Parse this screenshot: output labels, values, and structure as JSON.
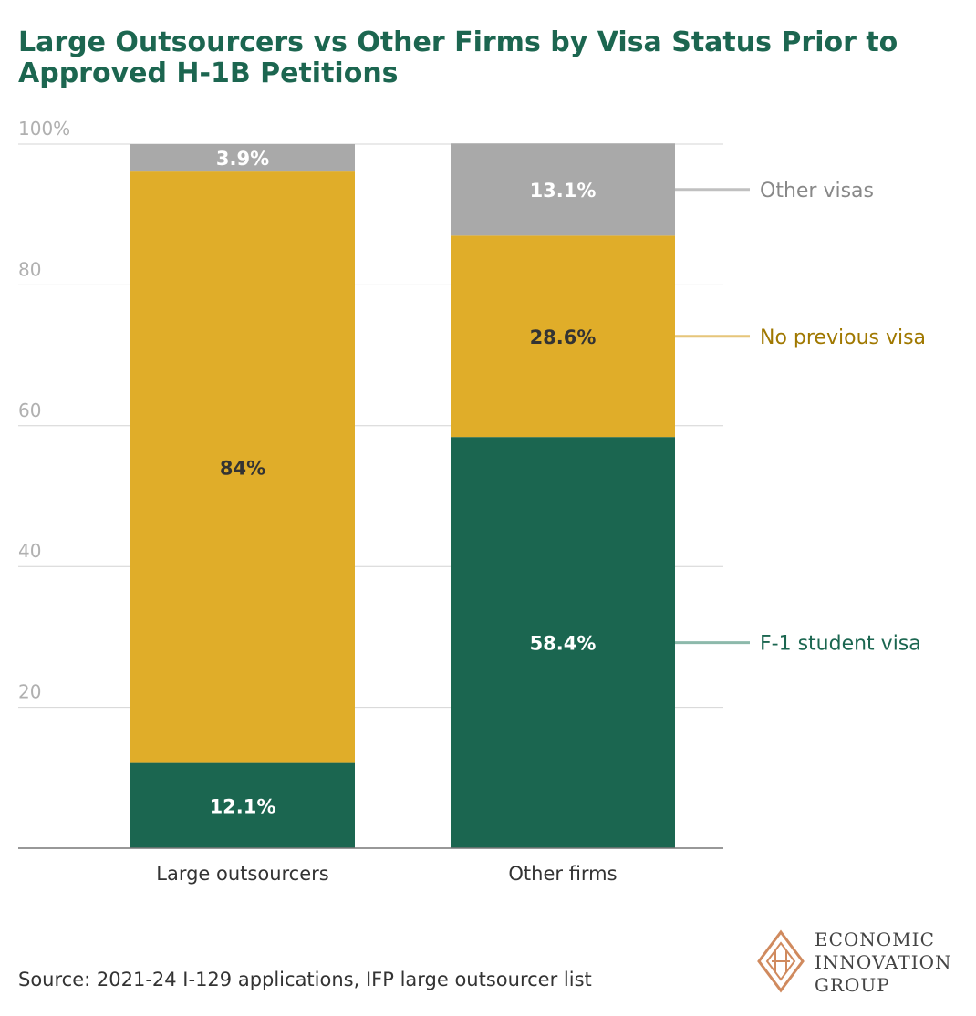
{
  "title": "Large Outsourcers vs Other Firms by Visa Status Prior to Approved H-1B Petitions",
  "source": "Source: 2021-24 I-129 applications, IFP large outsourcer list",
  "logo": {
    "line1": "ECONOMIC",
    "line2": "INNOVATION",
    "line3": "GROUP"
  },
  "colors": {
    "f1": "#1b6650",
    "novisa": "#e0ad29",
    "other": "#a9a9a9",
    "title": "#1c6650"
  },
  "chart_data": {
    "type": "bar",
    "stacked": true,
    "title": "Large Outsourcers vs Other Firms by Visa Status Prior to Approved H-1B Petitions",
    "categories": [
      "Large outsourcers",
      "Other firms"
    ],
    "ylim": [
      0,
      100
    ],
    "yticks": [
      20,
      40,
      60,
      80,
      100
    ],
    "ytick_labels": [
      "20",
      "40",
      "60",
      "80",
      "100%"
    ],
    "grid": true,
    "series": [
      {
        "name": "F-1 student visa",
        "values": [
          12.1,
          58.4
        ],
        "labels": [
          "12.1%",
          "58.4%"
        ],
        "color": "#1b6650",
        "label_color": "#ffffff",
        "legend_color": "#1b6650",
        "line_color": "#8db9ab"
      },
      {
        "name": "No previous visa",
        "values": [
          84,
          28.6
        ],
        "labels": [
          "84%",
          "28.6%"
        ],
        "color": "#e0ad29",
        "label_color": "#333333",
        "legend_color": "#a07800",
        "line_color": "#e6c57a"
      },
      {
        "name": "Other visas",
        "values": [
          3.9,
          13.1
        ],
        "labels": [
          "3.9%",
          "13.1%"
        ],
        "color": "#a9a9a9",
        "label_color": "#ffffff",
        "legend_color": "#888888",
        "line_color": "#c0c0c0"
      }
    ],
    "legend_placement": "right, aligned to second bar"
  }
}
